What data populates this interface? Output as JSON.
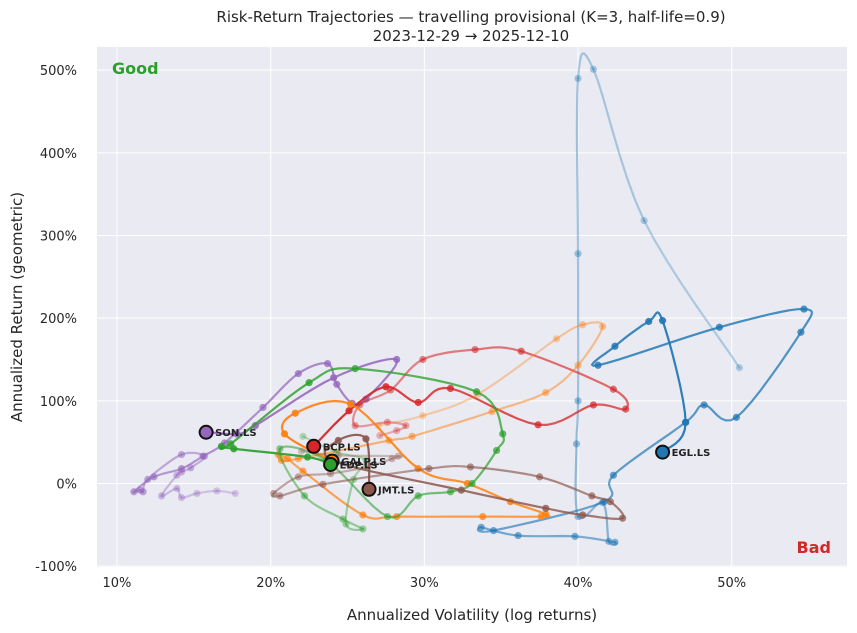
{
  "chart_data": {
    "type": "line",
    "title": "Risk-Return Trajectories — travelling provisional (K=3, half-life=0.9)",
    "subtitle": "2023-12-29 → 2025-12-10",
    "xlabel": "Annualized Volatility (log returns)",
    "ylabel": "Annualized Return (geometric)",
    "xlim": [
      8.7,
      57.5
    ],
    "ylim": [
      -101,
      528
    ],
    "x_ticks": [
      10,
      20,
      30,
      40,
      50
    ],
    "x_tick_labels": [
      "10%",
      "20%",
      "30%",
      "40%",
      "50%"
    ],
    "y_ticks": [
      -100,
      0,
      100,
      200,
      300,
      400,
      500
    ],
    "y_tick_labels": [
      "-100%",
      "0%",
      "100%",
      "200%",
      "300%",
      "400%",
      "500%"
    ],
    "grid": true,
    "annotations": {
      "good": "Good",
      "bad": "Bad"
    },
    "colors": {
      "good": "#2ca02c",
      "bad": "#d62728",
      "background": "#eaeaf2"
    },
    "series": [
      {
        "name": "EGL.LS",
        "color": "#1f77b4",
        "x": [
          50.5,
          44.3,
          41.0,
          40.0,
          40.0,
          40.0,
          39.9,
          40.0,
          41.6,
          42.0,
          42.4,
          39.8,
          36.1,
          33.7,
          34.5,
          41.7,
          42.3,
          47.0,
          48.2,
          50.3,
          54.5,
          54.7,
          49.2,
          41.3,
          42.4,
          44.6,
          45.5,
          47.0,
          45.5
        ],
        "y": [
          140,
          318,
          501,
          490,
          278,
          100,
          48,
          -40,
          -23,
          -70,
          -71,
          -64,
          -63,
          -53,
          -57,
          -22,
          10,
          74,
          95,
          80,
          183,
          211,
          189,
          143,
          166,
          196,
          197,
          74,
          38
        ]
      },
      {
        "name": "SON.LS",
        "color": "#9467bd",
        "x": [
          17.7,
          16.5,
          15.2,
          14.2,
          13.9,
          12.9,
          13.9,
          14.2,
          14.8,
          15.7,
          14.2,
          12.0,
          11.7,
          11.5,
          11.1,
          12.4,
          14.2,
          15.6,
          17.0,
          19.5,
          21.8,
          23.7,
          24.3,
          25.3,
          26.2,
          28.2,
          24.1,
          19.0,
          17.8,
          16.0,
          15.8
        ],
        "y": [
          -12,
          -9,
          -12,
          -17,
          -6,
          -15,
          10,
          14,
          19,
          33,
          35,
          5,
          -10,
          -8,
          -10,
          8,
          18,
          33,
          49,
          92,
          133,
          145,
          120,
          97,
          102,
          150,
          128,
          70,
          60,
          62,
          62
        ]
      },
      {
        "name": "BCP.LS",
        "color": "#d62728",
        "x": [
          27.1,
          28.2,
          28.8,
          27.6,
          25.5,
          25.8,
          27.8,
          29.9,
          33.3,
          36.3,
          42.3,
          43.1,
          41.0,
          37.4,
          31.7,
          29.6,
          27.5,
          25.1,
          22.8
        ],
        "y": [
          58,
          64,
          70,
          74,
          70,
          95,
          113,
          150,
          162,
          160,
          114,
          90,
          95,
          71,
          115,
          98,
          117,
          88,
          45
        ]
      },
      {
        "name": "GALP.LS",
        "color": "#ff7f0e",
        "x": [
          27.0,
          29.9,
          33.5,
          38.6,
          40.3,
          41.6,
          40.0,
          37.9,
          34.4,
          29.2,
          27.7,
          21.8,
          20.7,
          20.5,
          21.1,
          22.1,
          26.0,
          28.2,
          33.8,
          37.6,
          37.9,
          35.6,
          32.8,
          29.6,
          25.2,
          21.6,
          20.9,
          24.0
        ],
        "y": [
          70,
          82,
          108,
          175,
          192,
          190,
          143,
          110,
          87,
          57,
          52,
          30,
          28,
          35,
          30,
          15,
          -38,
          -40,
          -40,
          -40,
          -37,
          -22,
          0,
          18,
          96,
          85,
          60,
          27
        ]
      },
      {
        "name": "EDP.LS",
        "color": "#2ca02c",
        "x": [
          22.1,
          24.3,
          26.2,
          25.4,
          24.9,
          26.0,
          24.7,
          22.2,
          20.6,
          23.6,
          27.6,
          29.6,
          31.7,
          33.1,
          34.7,
          35.1,
          33.4,
          25.5,
          22.5,
          17.4,
          16.8,
          17.6,
          22.4,
          23.9
        ],
        "y": [
          57,
          38,
          28,
          5,
          -49,
          -55,
          -43,
          -15,
          42,
          28,
          -40,
          -15,
          -10,
          0,
          40,
          60,
          111,
          139,
          122,
          48,
          45,
          42,
          32,
          23
        ]
      },
      {
        "name": "JMT.LS",
        "color": "#8c564b",
        "x": [
          22.0,
          24.4,
          28.3,
          27.9,
          26.3,
          23.9,
          21.8,
          20.2,
          20.6,
          23.4,
          30.3,
          33.0,
          37.5,
          40.9,
          42.1,
          42.9,
          40.3,
          37.9,
          32.4,
          24.1,
          24.4,
          26.2,
          26.4
        ],
        "y": [
          39,
          34,
          33,
          30,
          20,
          12,
          8,
          -12,
          -15,
          -1,
          18,
          20,
          8,
          -15,
          -22,
          -42,
          -38,
          -30,
          -8,
          27,
          52,
          54,
          -7
        ]
      }
    ]
  }
}
